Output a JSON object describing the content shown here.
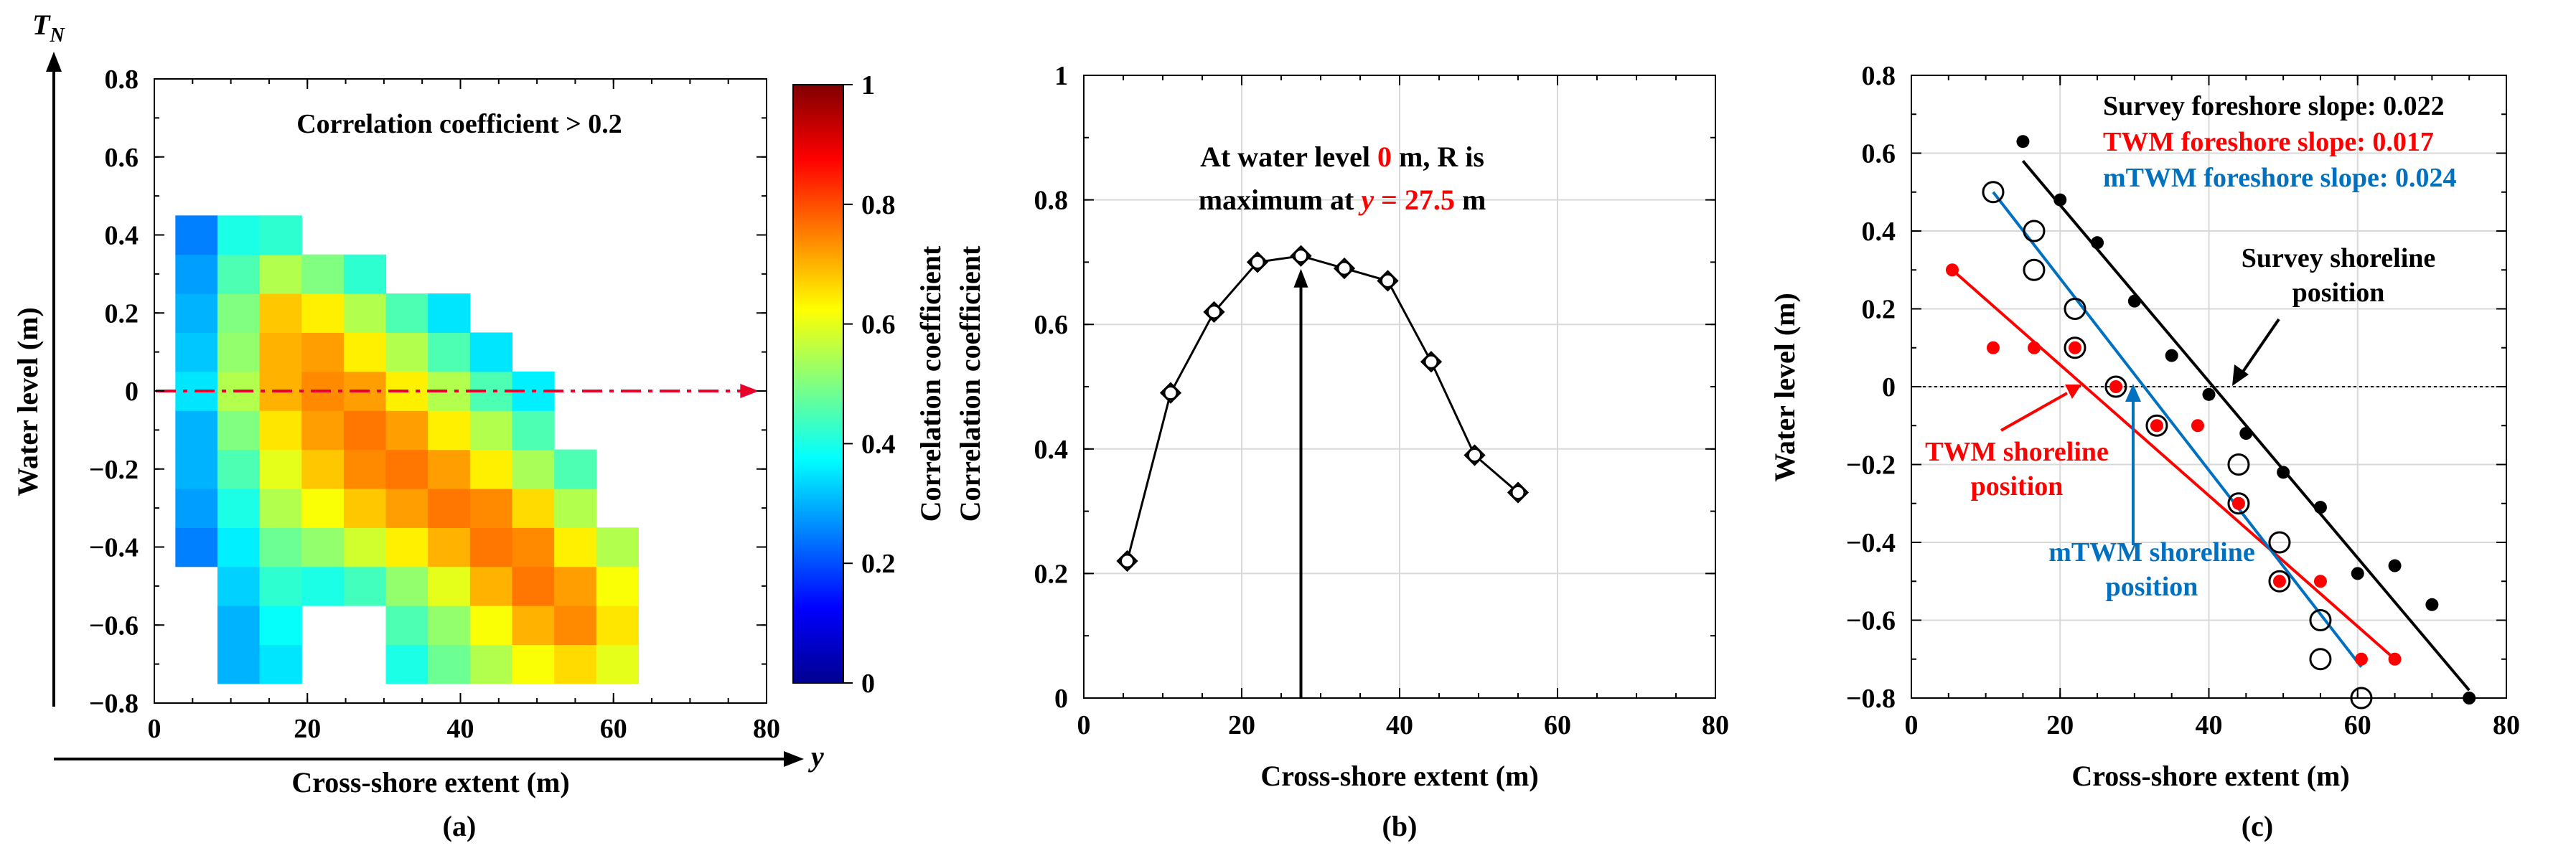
{
  "chart_data": [
    {
      "type": "heatmap",
      "panel_label": "(a)",
      "annotation": "Correlation coefficient > 0.2",
      "xlabel": "Cross-shore extent (m)",
      "ylabel": "Water level (m)",
      "x_axis_arrow_label": "y",
      "y_axis_arrow_label": "T",
      "y_axis_arrow_subscript": "N",
      "xlim": [
        0,
        80
      ],
      "ylim": [
        -0.8,
        0.8
      ],
      "xticks": [
        "0",
        "20",
        "40",
        "60",
        "80"
      ],
      "yticks": [
        "-0.8",
        "-0.6",
        "-0.4",
        "-0.2",
        "0",
        "0.2",
        "0.4",
        "0.6",
        "0.8"
      ],
      "reference_line_water_level": 0,
      "colorbar": {
        "label": "Correlation coefficient",
        "label_repeat": "Correlation coefficient",
        "range": [
          0,
          1
        ],
        "ticks": [
          "0",
          "0.2",
          "0.4",
          "0.6",
          "0.8",
          "1"
        ],
        "colors": [
          "#00008f",
          "#0000ff",
          "#0080ff",
          "#00ffff",
          "#80ff80",
          "#ffff00",
          "#ff8000",
          "#ff0000",
          "#800000"
        ]
      },
      "x": [
        5.5,
        11,
        16.5,
        22,
        27.5,
        33,
        38.5,
        44,
        49.5,
        55,
        60.5
      ],
      "y": [
        -0.7,
        -0.6,
        -0.5,
        -0.4,
        -0.3,
        -0.2,
        -0.1,
        0,
        0.1,
        0.2,
        0.3,
        0.4
      ],
      "z": [
        [
          null,
          0.3,
          0.35,
          null,
          null,
          0.4,
          0.48,
          0.55,
          0.62,
          0.66,
          0.6
        ],
        [
          null,
          0.3,
          0.38,
          null,
          null,
          0.45,
          0.52,
          0.62,
          0.7,
          0.74,
          0.65
        ],
        [
          null,
          0.33,
          0.42,
          0.4,
          0.44,
          0.52,
          0.6,
          0.7,
          0.76,
          0.72,
          0.62
        ],
        [
          0.25,
          0.36,
          0.48,
          0.52,
          0.58,
          0.64,
          0.7,
          0.76,
          0.74,
          0.64,
          0.55
        ],
        [
          0.28,
          0.4,
          0.55,
          0.62,
          0.68,
          0.72,
          0.76,
          0.74,
          0.66,
          0.55,
          null
        ],
        [
          0.3,
          0.45,
          0.6,
          0.68,
          0.74,
          0.76,
          0.72,
          0.64,
          0.54,
          0.45,
          null
        ],
        [
          0.3,
          0.5,
          0.65,
          0.72,
          0.76,
          0.72,
          0.64,
          0.55,
          0.45,
          null,
          null
        ],
        [
          0.35,
          0.55,
          0.7,
          0.74,
          0.72,
          0.64,
          0.55,
          0.45,
          0.36,
          null,
          null
        ],
        [
          0.32,
          0.52,
          0.7,
          0.72,
          0.64,
          0.55,
          0.45,
          0.35,
          null,
          null,
          null
        ],
        [
          0.3,
          0.5,
          0.68,
          0.64,
          0.55,
          0.45,
          0.35,
          null,
          null,
          null,
          null
        ],
        [
          0.28,
          0.45,
          0.55,
          0.5,
          0.42,
          null,
          null,
          null,
          null,
          null,
          null
        ],
        [
          0.25,
          0.4,
          0.42,
          null,
          null,
          null,
          null,
          null,
          null,
          null,
          null
        ]
      ]
    },
    {
      "type": "line",
      "panel_label": "(b)",
      "annotation_lines": [
        "At water level ",
        "0",
        " m, R is",
        "maximum at ",
        "y",
        " = 27.5",
        " m"
      ],
      "xlabel": "Cross-shore extent (m)",
      "ylabel": "Correlation coefficient",
      "xlim": [
        0,
        80
      ],
      "ylim": [
        0,
        1
      ],
      "xticks": [
        "0",
        "20",
        "40",
        "60",
        "80"
      ],
      "yticks": [
        "0",
        "0.2",
        "0.4",
        "0.6",
        "0.8",
        "1"
      ],
      "grid": true,
      "x": [
        5.5,
        11,
        16.5,
        22,
        27.5,
        33,
        38.5,
        44,
        49.5,
        55
      ],
      "values": [
        0.22,
        0.49,
        0.62,
        0.7,
        0.71,
        0.69,
        0.67,
        0.54,
        0.39,
        0.33
      ],
      "marker_arrow_x": 27.5
    },
    {
      "type": "scatter",
      "panel_label": "(c)",
      "xlabel": "Cross-shore extent (m)",
      "ylabel": "Water level (m)",
      "xlim": [
        0,
        80
      ],
      "ylim": [
        -0.8,
        0.8
      ],
      "xticks": [
        "0",
        "20",
        "40",
        "60",
        "80"
      ],
      "yticks": [
        "-0.8",
        "-0.6",
        "-0.4",
        "-0.2",
        "0",
        "0.2",
        "0.4",
        "0.6",
        "0.8"
      ],
      "grid": true,
      "legend_texts": [
        {
          "text": "Survey foreshore slope: 0.022",
          "color": "#000000"
        },
        {
          "text": "TWM foreshore slope: 0.017",
          "color": "#ff0000"
        },
        {
          "text": "mTWM foreshore slope: 0.024",
          "color": "#0070c0"
        }
      ],
      "annotations": {
        "survey_shoreline": [
          "Survey shoreline",
          "position"
        ],
        "twm_shoreline": [
          "TWM shoreline",
          "position"
        ],
        "mtwm_shoreline": [
          "mTWM shoreline",
          "position"
        ]
      },
      "series": [
        {
          "name": "Survey",
          "color": "#000000",
          "marker": "filled",
          "x": [
            15,
            20,
            25,
            30,
            35,
            40,
            45,
            50,
            55,
            60,
            65,
            70,
            75
          ],
          "y": [
            0.63,
            0.48,
            0.37,
            0.22,
            0.08,
            -0.02,
            -0.12,
            -0.22,
            -0.31,
            -0.48,
            -0.46,
            -0.56,
            -0.8
          ],
          "fit_line": {
            "x": [
              15,
              75
            ],
            "y": [
              0.58,
              -0.78
            ]
          }
        },
        {
          "name": "TWM",
          "color": "#ff0000",
          "marker": "filled",
          "x": [
            5.5,
            11,
            16.5,
            22,
            27.5,
            33,
            38.5,
            44,
            49.5,
            55,
            60.5,
            65
          ],
          "y": [
            0.3,
            0.1,
            0.1,
            0.1,
            0.0,
            -0.1,
            -0.1,
            -0.3,
            -0.5,
            -0.5,
            -0.7,
            -0.7
          ],
          "fit_line": {
            "x": [
              5.5,
              65
            ],
            "y": [
              0.3,
              -0.7
            ]
          }
        },
        {
          "name": "mTWM",
          "color": "#0070c0",
          "marker": "open",
          "x": [
            11,
            16.5,
            16.5,
            22,
            22,
            27.5,
            33,
            44,
            44,
            49.5,
            49.5,
            55,
            55,
            60.5
          ],
          "y": [
            0.5,
            0.4,
            0.3,
            0.2,
            0.1,
            0.0,
            -0.1,
            -0.2,
            -0.3,
            -0.4,
            -0.5,
            -0.6,
            -0.7,
            -0.8
          ],
          "fit_line": {
            "x": [
              11,
              60.5
            ],
            "y": [
              0.5,
              -0.72
            ]
          }
        }
      ],
      "reference_line_water_level": 0
    }
  ]
}
